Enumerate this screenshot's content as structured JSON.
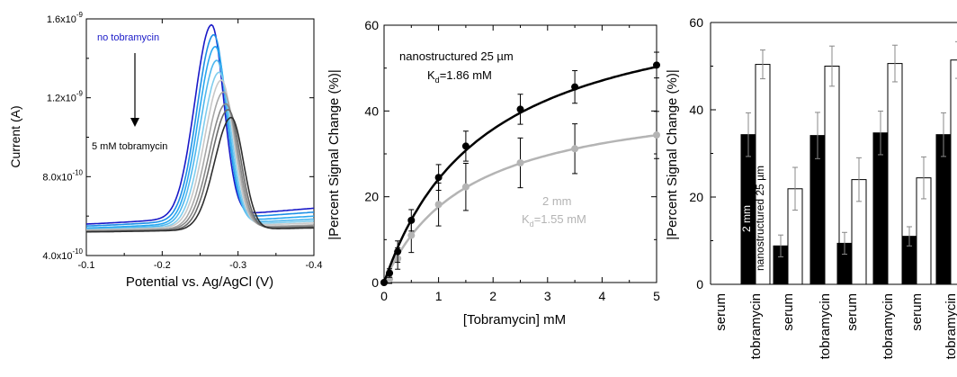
{
  "chart_data": [
    {
      "type": "line",
      "ylabel": "Current (A)",
      "xlabel": "Potential vs. Ag/AgCl (V)",
      "xlim": [
        -0.1,
        -0.4
      ],
      "ylim": [
        4e-10,
        1.6e-09
      ],
      "x_ticks": [
        "-0.1",
        "-0.2",
        "-0.3",
        "-0.4"
      ],
      "y_ticks": [
        "4.0x10",
        "8.0x10",
        "1.2x10",
        "1.6x10"
      ],
      "y_tick_exponents": [
        "-10",
        "-10",
        "-9",
        "-9"
      ],
      "annotations": {
        "top": "no tobramycin",
        "bottom": "5 mM tobramycin"
      },
      "series": [
        {
          "color": "#1a1ac8",
          "peak_x": -0.265,
          "peak_y": 1.57e-09,
          "base_left": 5.6e-10,
          "base_right": 6.4e-10
        },
        {
          "color": "#1e90e6",
          "peak_x": -0.268,
          "peak_y": 1.52e-09,
          "base_left": 5.5e-10,
          "base_right": 6.2e-10
        },
        {
          "color": "#2aa8f0",
          "peak_x": -0.27,
          "peak_y": 1.46e-09,
          "base_left": 5.4e-10,
          "base_right": 6e-10
        },
        {
          "color": "#4fb8ee",
          "peak_x": -0.272,
          "peak_y": 1.39e-09,
          "base_left": 5.35e-10,
          "base_right": 5.85e-10
        },
        {
          "color": "#7fcdee",
          "peak_x": -0.275,
          "peak_y": 1.33e-09,
          "base_left": 5.3e-10,
          "base_right": 5.75e-10
        },
        {
          "color": "#c8c8c8",
          "peak_x": -0.278,
          "peak_y": 1.29e-09,
          "base_left": 5.3e-10,
          "base_right": 5.65e-10
        },
        {
          "color": "#a8a8a8",
          "peak_x": -0.281,
          "peak_y": 1.23e-09,
          "base_left": 5.25e-10,
          "base_right": 5.55e-10
        },
        {
          "color": "#8a8a8a",
          "peak_x": -0.284,
          "peak_y": 1.17e-09,
          "base_left": 5.25e-10,
          "base_right": 5.5e-10
        },
        {
          "color": "#6a6a6a",
          "peak_x": -0.287,
          "peak_y": 1.14e-09,
          "base_left": 5.2e-10,
          "base_right": 5.45e-10
        },
        {
          "color": "#2e2e2e",
          "peak_x": -0.291,
          "peak_y": 1.1e-09,
          "base_left": 5.2e-10,
          "base_right": 5.4e-10
        }
      ]
    },
    {
      "type": "scatter",
      "ylabel": "|Percent Signal Change (%)|",
      "xlabel": "[Tobramycin] mM",
      "xlim": [
        0,
        5
      ],
      "ylim": [
        0,
        60
      ],
      "x_ticks": [
        "0",
        "1",
        "2",
        "3",
        "4",
        "5"
      ],
      "y_ticks": [
        "0",
        "20",
        "40",
        "60"
      ],
      "series": [
        {
          "label_line1": "nanostructured 25 µm",
          "label_line2_a": "K",
          "label_line2_sub": "d",
          "label_line2_b": "=1.86 mM",
          "color": "#000000",
          "kd": 1.86,
          "bmax": 69.0,
          "x": [
            0,
            0.1,
            0.25,
            0.5,
            1,
            1.5,
            2.5,
            3.5,
            5
          ],
          "y": [
            0,
            2.2,
            7.2,
            14.5,
            24.5,
            31.8,
            40.4,
            45.6,
            50.7
          ],
          "err": [
            0.5,
            1.0,
            2.5,
            2.5,
            3.0,
            3.5,
            3.5,
            3.8,
            3.0
          ]
        },
        {
          "label_line1": "2 mm",
          "label_line2_a": "K",
          "label_line2_sub": "d",
          "label_line2_b": "=1.55 mM",
          "color": "#b4b4b4",
          "kd": 1.55,
          "bmax": 45.0,
          "x": [
            0,
            0.1,
            0.25,
            0.5,
            1,
            1.5,
            2.5,
            3.5,
            5
          ],
          "y": [
            0,
            0.8,
            5.6,
            11.0,
            18.2,
            22.3,
            27.9,
            31.2,
            34.4
          ],
          "err": [
            0.5,
            1.0,
            2.5,
            4.0,
            5.0,
            5.5,
            5.8,
            5.8,
            5.5
          ]
        }
      ]
    },
    {
      "type": "bar",
      "ylabel": "|Percent Signal Change (%)|",
      "ylim": [
        0,
        60
      ],
      "y_ticks": [
        "0",
        "20",
        "40",
        "60"
      ],
      "categories": [
        "serum",
        "tobramycin",
        "serum",
        "tobramycin",
        "serum",
        "tobramycin",
        "serum",
        "tobramycin"
      ],
      "series": [
        {
          "name": "2 mm",
          "color": "#000000",
          "values": [
            0.0,
            34.3,
            8.8,
            34.1,
            9.4,
            34.7,
            11.0,
            34.3
          ],
          "err": [
            0,
            5.0,
            2.5,
            5.3,
            2.5,
            5.0,
            2.2,
            5.0
          ]
        },
        {
          "name": "nanostructured 25 µm",
          "color": "#ffffff",
          "values": [
            0.0,
            50.4,
            21.9,
            50.0,
            24.0,
            50.6,
            24.4,
            51.4
          ],
          "err": [
            0,
            3.3,
            4.9,
            4.6,
            5.0,
            4.2,
            4.8,
            4.2
          ]
        }
      ]
    }
  ]
}
